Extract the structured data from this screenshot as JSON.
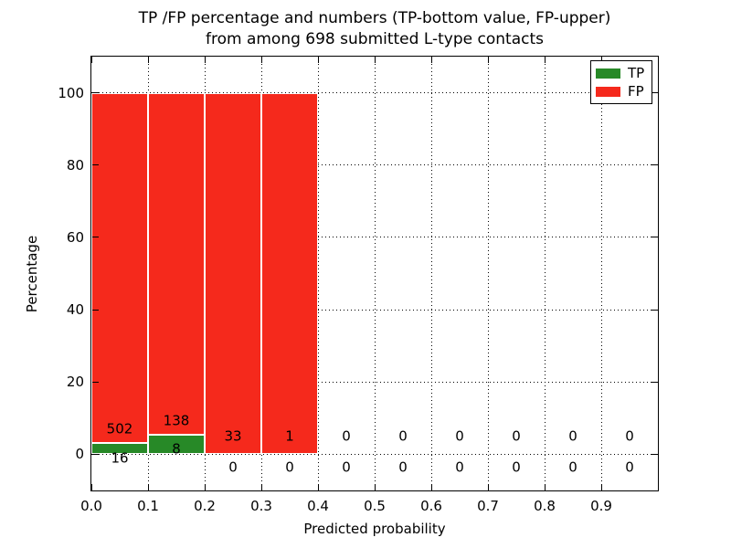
{
  "chart_data": {
    "type": "bar",
    "stacked": true,
    "title_line1": "TP /FP percentage and numbers (TP-bottom value, FP-upper)",
    "title_line2": "from among 698 submitted L-type contacts",
    "total_submitted": 698,
    "xlabel": "Predicted probability",
    "ylabel": "Percentage",
    "xlim": [
      0.0,
      1.0
    ],
    "ylim": [
      -10,
      110
    ],
    "grid": true,
    "legend_position": "upper right",
    "series": [
      {
        "name": "TP",
        "color": "#278927"
      },
      {
        "name": "FP",
        "color": "#F5291C"
      }
    ],
    "x_ticks": [
      {
        "v": 0.0,
        "label": "0.0"
      },
      {
        "v": 0.1,
        "label": "0.1"
      },
      {
        "v": 0.2,
        "label": "0.2"
      },
      {
        "v": 0.3,
        "label": "0.3"
      },
      {
        "v": 0.4,
        "label": "0.4"
      },
      {
        "v": 0.5,
        "label": "0.5"
      },
      {
        "v": 0.6,
        "label": "0.6"
      },
      {
        "v": 0.7,
        "label": "0.7"
      },
      {
        "v": 0.8,
        "label": "0.8"
      },
      {
        "v": 0.9,
        "label": "0.9"
      }
    ],
    "y_ticks": [
      {
        "v": 0,
        "label": "0"
      },
      {
        "v": 20,
        "label": "20"
      },
      {
        "v": 40,
        "label": "40"
      },
      {
        "v": 60,
        "label": "60"
      },
      {
        "v": 80,
        "label": "80"
      },
      {
        "v": 100,
        "label": "100"
      }
    ],
    "bin_width": 0.1,
    "bins": [
      {
        "x0": 0.0,
        "tp": 16,
        "fp": 502,
        "tp_pct": 3.09,
        "fp_pct": 96.91
      },
      {
        "x0": 0.1,
        "tp": 8,
        "fp": 138,
        "tp_pct": 5.48,
        "fp_pct": 94.52
      },
      {
        "x0": 0.2,
        "tp": 0,
        "fp": 33,
        "tp_pct": 0,
        "fp_pct": 100
      },
      {
        "x0": 0.3,
        "tp": 0,
        "fp": 1,
        "tp_pct": 0,
        "fp_pct": 100
      },
      {
        "x0": 0.4,
        "tp": 0,
        "fp": 0,
        "tp_pct": 0,
        "fp_pct": 0
      },
      {
        "x0": 0.5,
        "tp": 0,
        "fp": 0,
        "tp_pct": 0,
        "fp_pct": 0
      },
      {
        "x0": 0.6,
        "tp": 0,
        "fp": 0,
        "tp_pct": 0,
        "fp_pct": 0
      },
      {
        "x0": 0.7,
        "tp": 0,
        "fp": 0,
        "tp_pct": 0,
        "fp_pct": 0
      },
      {
        "x0": 0.8,
        "tp": 0,
        "fp": 0,
        "tp_pct": 0,
        "fp_pct": 0
      },
      {
        "x0": 0.9,
        "tp": 0,
        "fp": 0,
        "tp_pct": 0,
        "fp_pct": 0
      }
    ]
  }
}
